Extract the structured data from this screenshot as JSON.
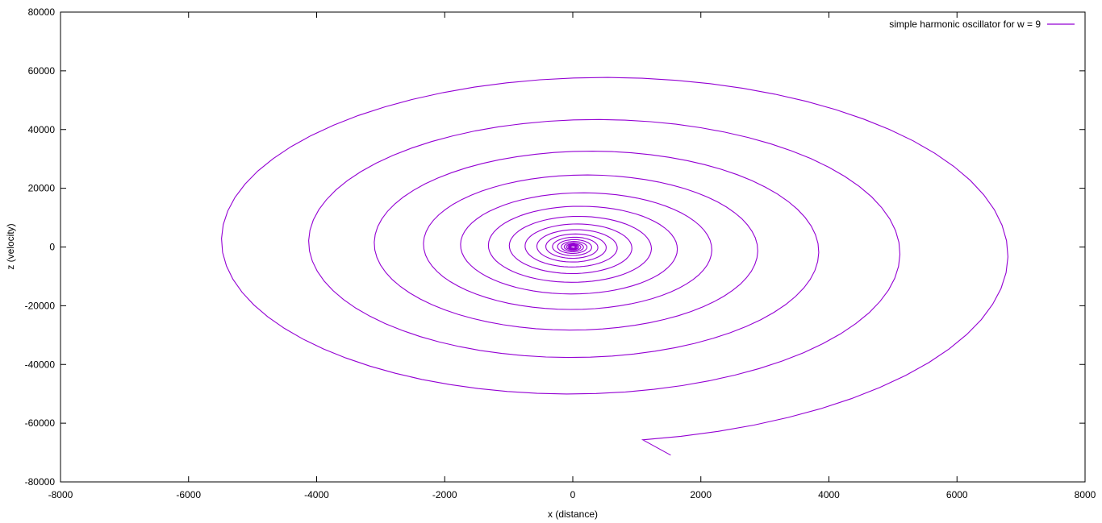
{
  "chart_data": {
    "type": "line",
    "title": "",
    "xlabel": "x (distance)",
    "ylabel": "z (velocity)",
    "xlim": [
      -8000,
      8000
    ],
    "ylim": [
      -80000,
      80000
    ],
    "xticks": [
      -8000,
      -6000,
      -4000,
      -2000,
      0,
      2000,
      4000,
      6000,
      8000
    ],
    "yticks": [
      -80000,
      -60000,
      -40000,
      -20000,
      0,
      20000,
      40000,
      60000,
      80000
    ],
    "grid": false,
    "legend": {
      "position": "top-right"
    },
    "series": [
      {
        "name": "simple harmonic oscillator for w = 9",
        "color": "#9400d3",
        "spiral": {
          "start_point": [
            1530,
            -70900
          ],
          "amplitude_x_outer": 7000,
          "amplitude_z_outer": 63000,
          "growth_per_turn": 1.33,
          "center": [
            0,
            0
          ]
        }
      }
    ]
  }
}
